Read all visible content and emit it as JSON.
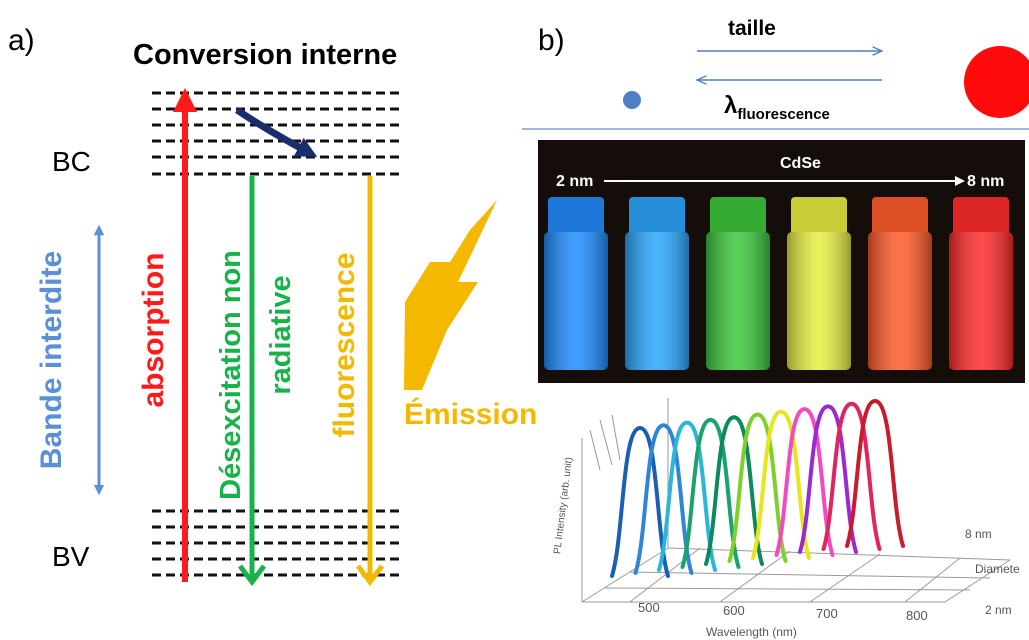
{
  "panel_a": {
    "label": "a)",
    "title": "Conversion interne",
    "bc_label": "BC",
    "bv_label": "BV",
    "bandgap_label": "Bande interdite",
    "absorption_label": "absorption",
    "nonrad_line1": "Désexcitation non",
    "nonrad_line2": "radiative",
    "fluorescence_label": "fluorescence",
    "emission_label": "Émission",
    "colors": {
      "bandgap": "#5b8fd6",
      "absorption": "#ff1a1a",
      "nonrad": "#17b34a",
      "fluorescence": "#f5b800",
      "internal_conversion": "#1a2d6e",
      "levels": "#111111"
    }
  },
  "panel_b": {
    "label": "b)",
    "size_label": "taille",
    "lambda_symbol": "λ",
    "lambda_subscript": "fluorescence",
    "photo": {
      "material": "CdSe",
      "min_size": "2 nm",
      "max_size": "8 nm",
      "vial_colors": [
        "#1e8cff",
        "#2aa6ff",
        "#3cc83c",
        "#e8f040",
        "#ff5a28",
        "#ff2a2a"
      ]
    },
    "spectra": {
      "x_ticks": [
        "500",
        "600",
        "700",
        "800"
      ],
      "xlabel": "Wavelength (nm)",
      "ylabel": "PL Intensity (arb. unit)",
      "depth_ticks": [
        "8 nm",
        "Diamete",
        "2 nm"
      ],
      "curve_colors": [
        "#1a5fb4",
        "#2f86d8",
        "#2bb5d8",
        "#1aa36a",
        "#0d8a5a",
        "#7fd02a",
        "#e6e61a",
        "#f04bc0",
        "#9a2ad0",
        "#e0245e",
        "#c81b2b"
      ]
    }
  }
}
